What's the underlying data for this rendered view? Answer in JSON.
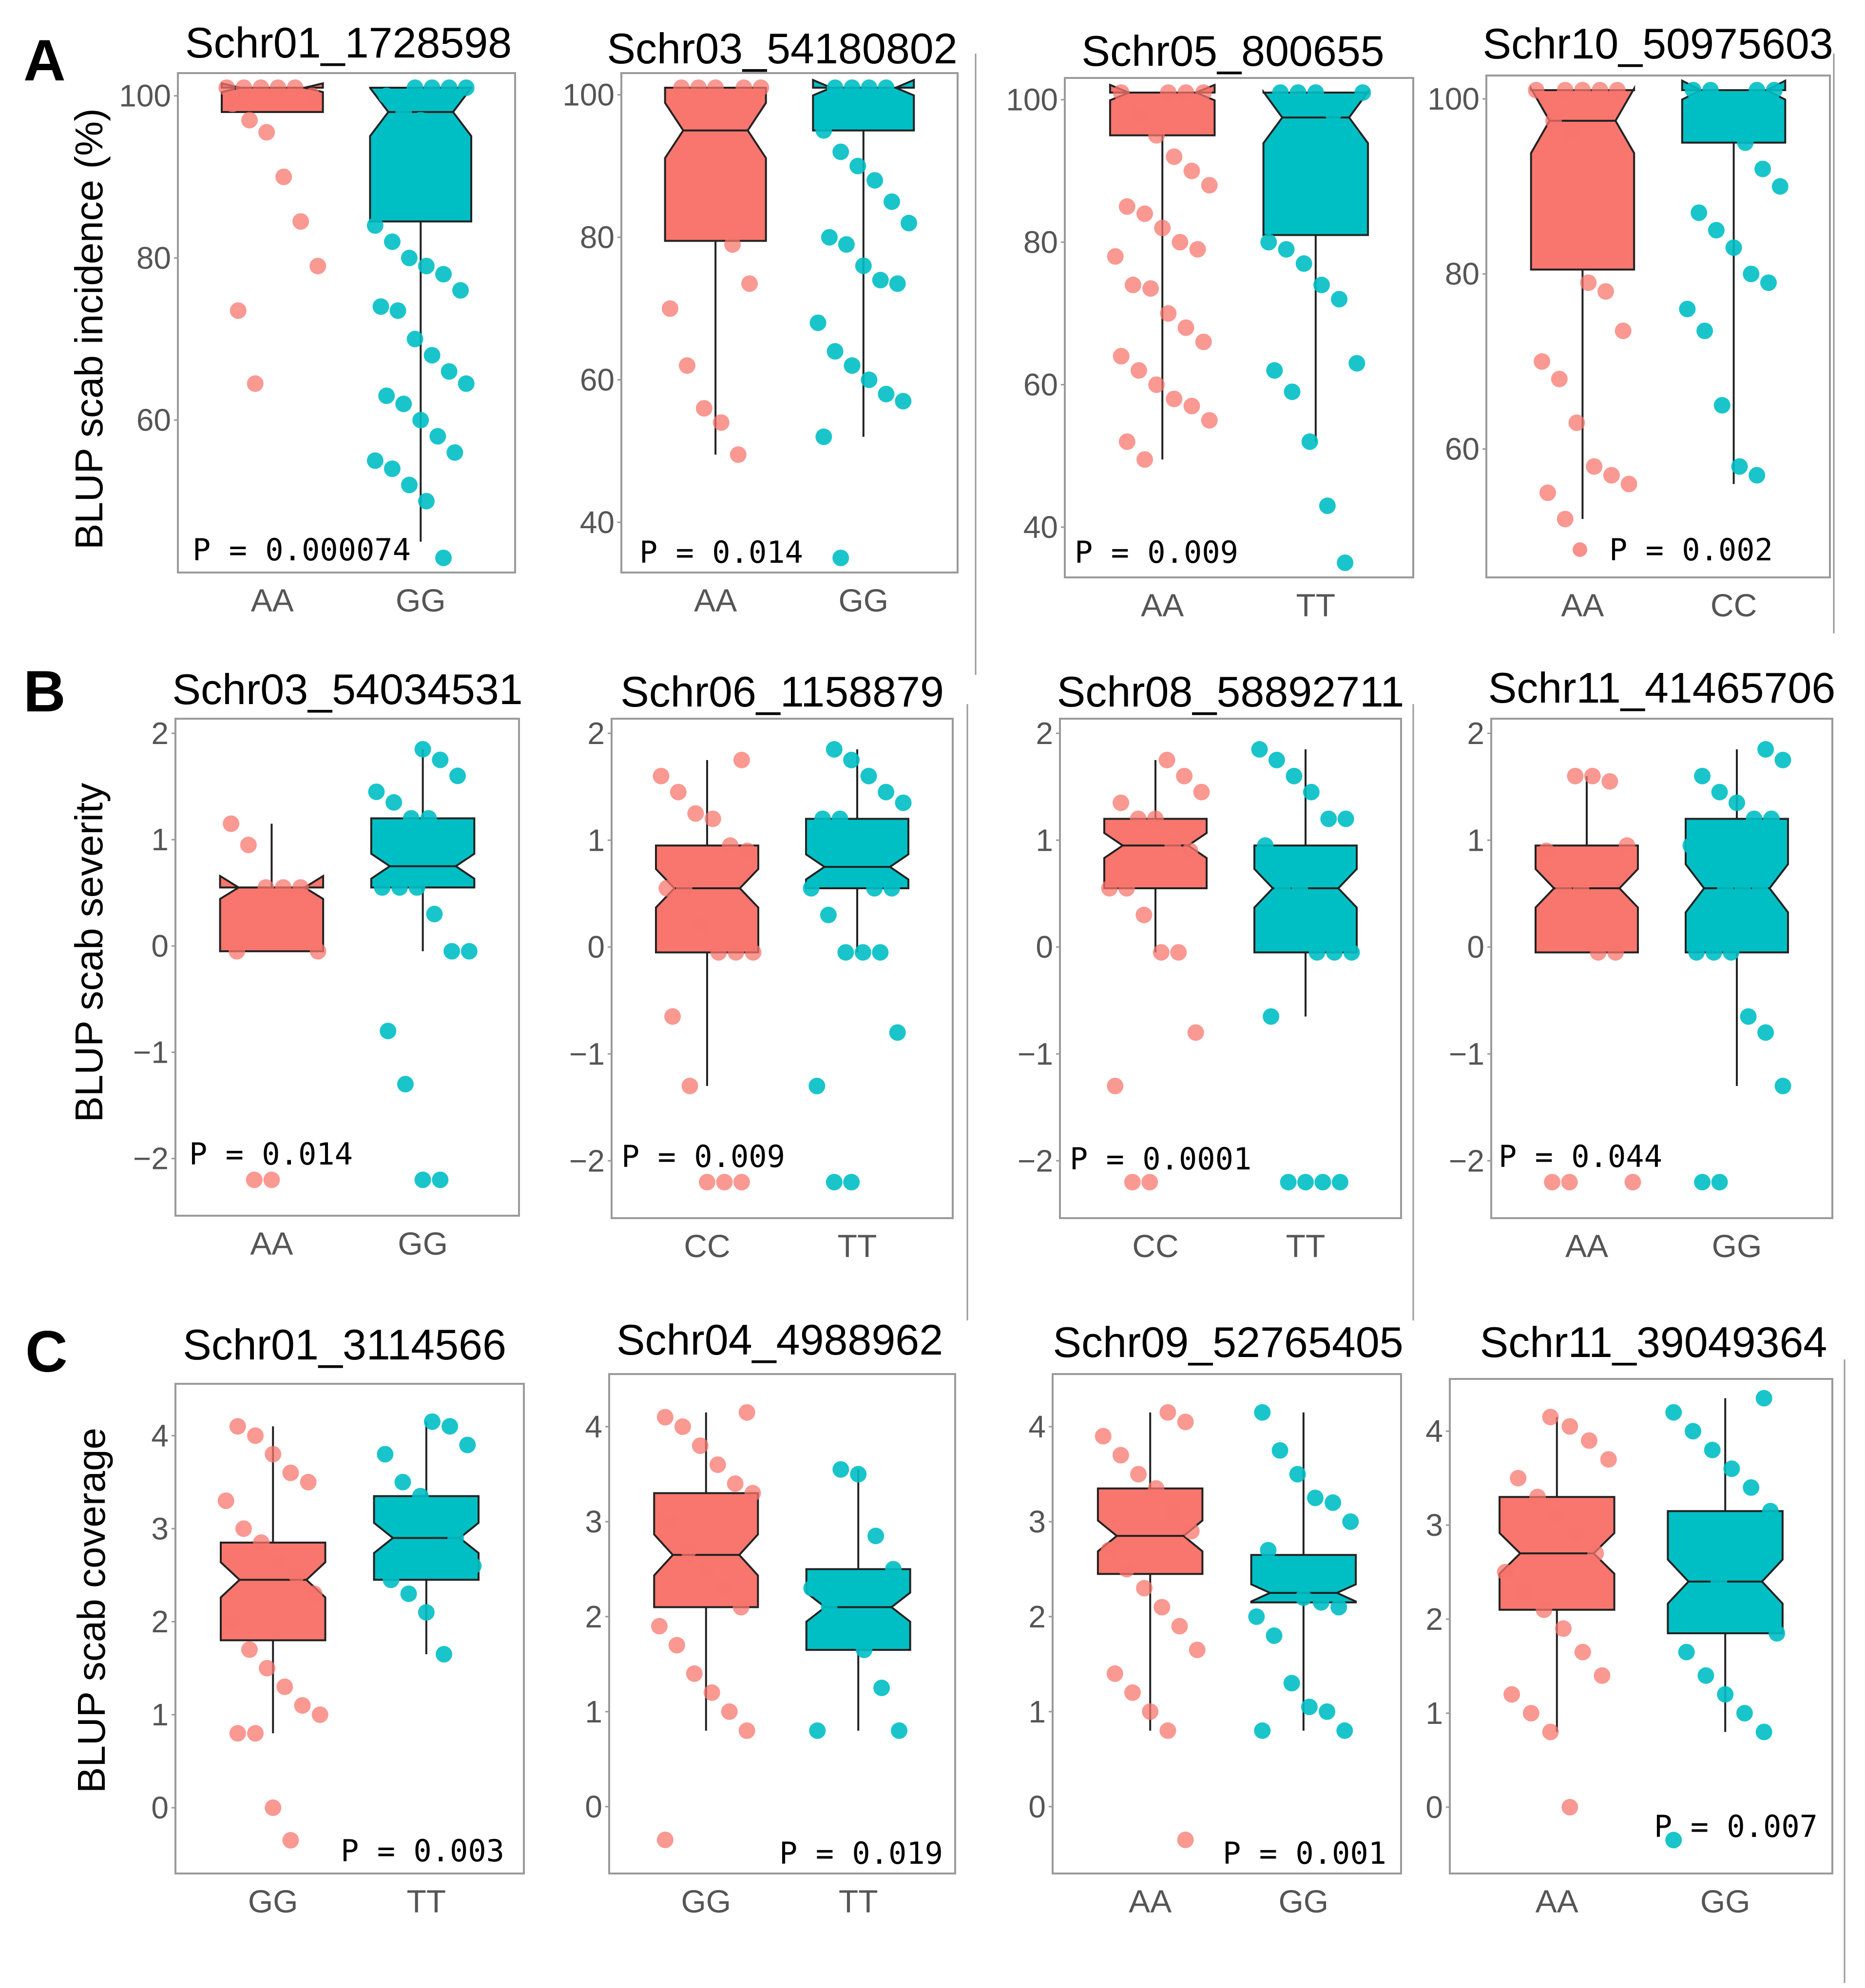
{
  "colors": {
    "AA_like": "#F8766D",
    "alt": "#00BFC4",
    "box_line": "#222222",
    "frame": "#9a9a9a",
    "tick_text": "#555555"
  },
  "rows": [
    {
      "letter": "A",
      "ylabel": "BLUP scab incidence (%)"
    },
    {
      "letter": "B",
      "ylabel": "BLUP scab severity"
    },
    {
      "letter": "C",
      "ylabel": "BLUP scab coverage"
    }
  ],
  "chart_data": [
    {
      "type": "box",
      "panel": "A",
      "title": "Schr01_1728598",
      "categories": [
        "AA",
        "GG"
      ],
      "pvalue": "P = 0.000074",
      "ylim": [
        43,
        101
      ],
      "yticks": [
        "60",
        "80",
        "100"
      ],
      "groups": [
        {
          "name": "AA",
          "lower_whisker": 98,
          "q1": 98,
          "median": 101,
          "q3": 101,
          "upper_whisker": 101,
          "points": [
            101,
            101,
            101,
            101,
            101,
            100,
            99,
            97,
            95.5,
            90,
            84.5,
            79,
            73.5,
            64.5
          ]
        },
        {
          "name": "GG",
          "lower_whisker": 45,
          "q1": 84.5,
          "median": 98,
          "q3": 101,
          "upper_whisker": 101,
          "points": [
            101,
            101,
            101,
            101,
            100,
            98,
            97,
            95,
            90,
            84,
            82,
            80,
            79,
            78,
            76,
            74,
            73.5,
            70,
            68,
            66,
            64.5,
            63,
            62,
            60,
            58,
            56,
            55,
            54,
            52,
            50,
            43
          ]
        }
      ]
    },
    {
      "type": "box",
      "panel": "A",
      "title": "Schr03_54180802",
      "categories": [
        "AA",
        "GG"
      ],
      "pvalue": "P = 0.014",
      "ylim": [
        35,
        101
      ],
      "yticks": [
        "40",
        "60",
        "80",
        "100"
      ],
      "groups": [
        {
          "name": "AA",
          "lower_whisker": 49.5,
          "q1": 79.5,
          "median": 95,
          "q3": 101,
          "upper_whisker": 101,
          "points": [
            101,
            101,
            101,
            101,
            101,
            79,
            73.5,
            70,
            62,
            56,
            54,
            49.5
          ]
        },
        {
          "name": "GG",
          "lower_whisker": 52,
          "q1": 95,
          "median": 101,
          "q3": 101,
          "upper_whisker": 101,
          "points": [
            101,
            101,
            101,
            101,
            98,
            95,
            92,
            90,
            88,
            85,
            82,
            80,
            79,
            76,
            74,
            73.5,
            68,
            64,
            62,
            60,
            58,
            57,
            52,
            35
          ]
        }
      ]
    },
    {
      "type": "box",
      "panel": "A",
      "title": "Schr05_800655",
      "categories": [
        "AA",
        "TT"
      ],
      "pvalue": "P = 0.009",
      "ylim": [
        35,
        101
      ],
      "yticks": [
        "40",
        "60",
        "80",
        "100"
      ],
      "groups": [
        {
          "name": "AA",
          "lower_whisker": 49.5,
          "q1": 95,
          "median": 101,
          "q3": 101,
          "upper_whisker": 101,
          "points": [
            101,
            101,
            101,
            101,
            98,
            95,
            92,
            90,
            88,
            85,
            84,
            82,
            80,
            79,
            78,
            74,
            73.5,
            70,
            68,
            66,
            64,
            62,
            60,
            58,
            57,
            55,
            52,
            49.5
          ]
        },
        {
          "name": "TT",
          "lower_whisker": 52,
          "q1": 81,
          "median": 97.5,
          "q3": 101,
          "upper_whisker": 101,
          "points": [
            101,
            101,
            101,
            101,
            98,
            95,
            80,
            79,
            77,
            74,
            72,
            63,
            62,
            59,
            52,
            43,
            35
          ]
        }
      ]
    },
    {
      "type": "box",
      "panel": "A",
      "title": "Schr10_50975603",
      "categories": [
        "AA",
        "CC"
      ],
      "pvalue": "P = 0.002",
      "ylim": [
        47,
        101
      ],
      "yticks": [
        "60",
        "80",
        "100"
      ],
      "groups": [
        {
          "name": "AA",
          "lower_whisker": 52,
          "q1": 80.5,
          "median": 97.5,
          "q3": 101,
          "upper_whisker": 101,
          "points": [
            101,
            101,
            101,
            101,
            101,
            97.5,
            96,
            79,
            78,
            73.5,
            70,
            68,
            63,
            58,
            57,
            56,
            55,
            52
          ]
        },
        {
          "name": "CC",
          "lower_whisker": 56,
          "q1": 95,
          "median": 101,
          "q3": 101,
          "upper_whisker": 101,
          "points": [
            101,
            101,
            101,
            101,
            98,
            95,
            92,
            90,
            87,
            85,
            83,
            80,
            79,
            76,
            73.5,
            65,
            58,
            57
          ]
        }
      ]
    },
    {
      "type": "box",
      "panel": "B",
      "title": "Schr03_54034531",
      "categories": [
        "AA",
        "GG"
      ],
      "pvalue": "P = 0.014",
      "ylim": [
        -2.4,
        2.0
      ],
      "yticks": [
        "−2",
        "−1",
        "0",
        "1",
        "2"
      ],
      "groups": [
        {
          "name": "AA",
          "lower_whisker": -0.05,
          "q1": -0.05,
          "median": 0.55,
          "q3": 0.55,
          "upper_whisker": 1.15,
          "points": [
            1.15,
            0.95,
            0.55,
            0.55,
            0.55,
            -0.05,
            -0.05,
            -2.2,
            -2.2
          ]
        },
        {
          "name": "GG",
          "lower_whisker": -0.05,
          "q1": 0.55,
          "median": 0.75,
          "q3": 1.2,
          "upper_whisker": 1.85,
          "points": [
            1.85,
            1.75,
            1.6,
            1.45,
            1.35,
            1.2,
            1.2,
            0.95,
            0.9,
            0.55,
            0.55,
            0.55,
            0.3,
            -0.05,
            -0.05,
            -0.8,
            -1.3,
            -2.2,
            -2.2
          ]
        }
      ]
    },
    {
      "type": "box",
      "panel": "B",
      "title": "Schr06_1158879",
      "categories": [
        "CC",
        "TT"
      ],
      "pvalue": "P = 0.009",
      "ylim": [
        -2.4,
        2.0
      ],
      "yticks": [
        "−2",
        "−1",
        "0",
        "1",
        "2"
      ],
      "groups": [
        {
          "name": "CC",
          "lower_whisker": -1.3,
          "q1": -0.05,
          "median": 0.55,
          "q3": 0.95,
          "upper_whisker": 1.75,
          "points": [
            1.75,
            1.6,
            1.45,
            1.25,
            1.2,
            0.95,
            0.9,
            0.55,
            0.55,
            0.2,
            -0.05,
            -0.05,
            -0.05,
            -0.65,
            -1.3,
            -2.2,
            -2.2,
            -2.2
          ]
        },
        {
          "name": "TT",
          "lower_whisker": -0.05,
          "q1": 0.55,
          "median": 0.75,
          "q3": 1.2,
          "upper_whisker": 1.85,
          "points": [
            1.85,
            1.75,
            1.6,
            1.45,
            1.35,
            1.2,
            1.2,
            0.95,
            0.55,
            0.55,
            0.55,
            0.3,
            -0.05,
            -0.05,
            -0.05,
            -0.8,
            -1.3,
            -2.2,
            -2.2
          ]
        }
      ]
    },
    {
      "type": "box",
      "panel": "B",
      "title": "Schr08_58892711",
      "categories": [
        "CC",
        "TT"
      ],
      "pvalue": "P = 0.0001",
      "ylim": [
        -2.4,
        2.0
      ],
      "yticks": [
        "−2",
        "−1",
        "0",
        "1",
        "2"
      ],
      "groups": [
        {
          "name": "CC",
          "lower_whisker": -0.05,
          "q1": 0.55,
          "median": 0.95,
          "q3": 1.2,
          "upper_whisker": 1.75,
          "points": [
            1.75,
            1.6,
            1.45,
            1.35,
            1.2,
            1.2,
            0.95,
            0.9,
            0.55,
            0.55,
            0.3,
            -0.05,
            -0.05,
            -0.8,
            -1.3,
            -2.2,
            -2.2
          ]
        },
        {
          "name": "TT",
          "lower_whisker": -0.65,
          "q1": -0.05,
          "median": 0.55,
          "q3": 0.95,
          "upper_whisker": 1.85,
          "points": [
            1.85,
            1.75,
            1.6,
            1.45,
            1.2,
            1.2,
            0.95,
            0.55,
            0.55,
            -0.05,
            -0.05,
            -0.05,
            -0.65,
            -2.2,
            -2.2,
            -2.2,
            -2.2
          ]
        }
      ]
    },
    {
      "type": "box",
      "panel": "B",
      "title": "Schr11_41465706",
      "categories": [
        "AA",
        "GG"
      ],
      "pvalue": "P = 0.044",
      "ylim": [
        -2.4,
        2.0
      ],
      "yticks": [
        "−2",
        "−1",
        "0",
        "1",
        "2"
      ],
      "groups": [
        {
          "name": "AA",
          "lower_whisker": -0.05,
          "q1": -0.05,
          "median": 0.55,
          "q3": 0.95,
          "upper_whisker": 1.6,
          "points": [
            1.6,
            1.6,
            1.55,
            0.95,
            0.9,
            0.55,
            0.55,
            -0.05,
            -0.05,
            -2.2,
            -2.2,
            -2.2
          ]
        },
        {
          "name": "GG",
          "lower_whisker": -1.3,
          "q1": -0.05,
          "median": 0.55,
          "q3": 1.2,
          "upper_whisker": 1.85,
          "points": [
            1.85,
            1.75,
            1.6,
            1.45,
            1.35,
            1.2,
            1.2,
            0.95,
            0.9,
            0.55,
            0.55,
            0.55,
            0.3,
            -0.05,
            -0.05,
            -0.05,
            -0.65,
            -0.8,
            -1.3,
            -2.2,
            -2.2
          ]
        }
      ]
    },
    {
      "type": "box",
      "panel": "C",
      "title": "Schr01_3114566",
      "categories": [
        "GG",
        "TT"
      ],
      "pvalue": "P = 0.003",
      "ylim": [
        -0.55,
        4.4
      ],
      "yticks": [
        "0",
        "1",
        "2",
        "3",
        "4"
      ],
      "groups": [
        {
          "name": "GG",
          "lower_whisker": 0.8,
          "q1": 1.8,
          "median": 2.45,
          "q3": 2.85,
          "upper_whisker": 4.1,
          "points": [
            4.1,
            4.0,
            3.8,
            3.6,
            3.5,
            3.3,
            3.0,
            2.85,
            2.65,
            2.5,
            2.3,
            2.0,
            1.7,
            1.5,
            1.3,
            1.1,
            1.0,
            0.8,
            0.8,
            0.0,
            -0.35
          ]
        },
        {
          "name": "TT",
          "lower_whisker": 1.65,
          "q1": 2.45,
          "median": 2.9,
          "q3": 3.35,
          "upper_whisker": 4.15,
          "points": [
            4.15,
            4.1,
            3.9,
            3.8,
            3.5,
            3.35,
            3.0,
            2.9,
            2.6,
            2.45,
            2.3,
            2.1,
            1.65
          ]
        }
      ]
    },
    {
      "type": "box",
      "panel": "C",
      "title": "Schr04_4988962",
      "categories": [
        "GG",
        "TT"
      ],
      "pvalue": "P = 0.019",
      "ylim": [
        -0.55,
        4.4
      ],
      "yticks": [
        "0",
        "1",
        "2",
        "3",
        "4"
      ],
      "groups": [
        {
          "name": "GG",
          "lower_whisker": 0.8,
          "q1": 2.1,
          "median": 2.65,
          "q3": 3.3,
          "upper_whisker": 4.15,
          "points": [
            4.15,
            4.1,
            4.0,
            3.8,
            3.6,
            3.4,
            3.3,
            3.0,
            2.7,
            2.5,
            2.3,
            2.1,
            1.9,
            1.7,
            1.4,
            1.2,
            1.0,
            0.8,
            -0.35
          ]
        },
        {
          "name": "TT",
          "lower_whisker": 0.8,
          "q1": 1.65,
          "median": 2.1,
          "q3": 2.5,
          "upper_whisker": 3.55,
          "points": [
            3.55,
            3.5,
            2.85,
            2.5,
            2.3,
            2.1,
            1.9,
            1.65,
            1.25,
            0.8,
            0.8
          ]
        }
      ]
    },
    {
      "type": "box",
      "panel": "C",
      "title": "Schr09_52765405",
      "categories": [
        "AA",
        "GG"
      ],
      "pvalue": "P = 0.001",
      "ylim": [
        -0.55,
        4.4
      ],
      "yticks": [
        "0",
        "1",
        "2",
        "3",
        "4"
      ],
      "groups": [
        {
          "name": "AA",
          "lower_whisker": 0.8,
          "q1": 2.45,
          "median": 2.85,
          "q3": 3.35,
          "upper_whisker": 4.15,
          "points": [
            4.15,
            4.05,
            3.9,
            3.7,
            3.5,
            3.35,
            3.1,
            2.9,
            2.7,
            2.5,
            2.3,
            2.1,
            1.9,
            1.65,
            1.4,
            1.2,
            1.0,
            0.8,
            -0.35
          ]
        },
        {
          "name": "GG",
          "lower_whisker": 0.8,
          "q1": 2.15,
          "median": 2.25,
          "q3": 2.65,
          "upper_whisker": 4.15,
          "points": [
            4.15,
            3.75,
            3.5,
            3.25,
            3.2,
            3.0,
            2.7,
            2.45,
            2.2,
            2.15,
            2.1,
            2.0,
            1.8,
            1.3,
            1.05,
            1.0,
            0.8,
            0.8
          ]
        }
      ]
    },
    {
      "type": "box",
      "panel": "C",
      "title": "Schr11_39049364",
      "categories": [
        "AA",
        "GG"
      ],
      "pvalue": "P = 0.007",
      "ylim": [
        -0.55,
        4.4
      ],
      "yticks": [
        "0",
        "1",
        "2",
        "3",
        "4"
      ],
      "groups": [
        {
          "name": "AA",
          "lower_whisker": 0.8,
          "q1": 2.1,
          "median": 2.7,
          "q3": 3.3,
          "upper_whisker": 4.15,
          "points": [
            4.15,
            4.05,
            3.9,
            3.7,
            3.5,
            3.3,
            3.1,
            2.9,
            2.7,
            2.5,
            2.3,
            2.1,
            1.9,
            1.65,
            1.4,
            1.2,
            1.0,
            0.8,
            0.0
          ]
        },
        {
          "name": "GG",
          "lower_whisker": 0.8,
          "q1": 1.85,
          "median": 2.4,
          "q3": 3.15,
          "upper_whisker": 4.35,
          "points": [
            4.35,
            4.2,
            4.0,
            3.8,
            3.6,
            3.4,
            3.15,
            2.9,
            2.6,
            2.4,
            2.2,
            2.0,
            1.85,
            1.65,
            1.4,
            1.2,
            1.0,
            0.8,
            -0.35
          ]
        }
      ]
    }
  ]
}
